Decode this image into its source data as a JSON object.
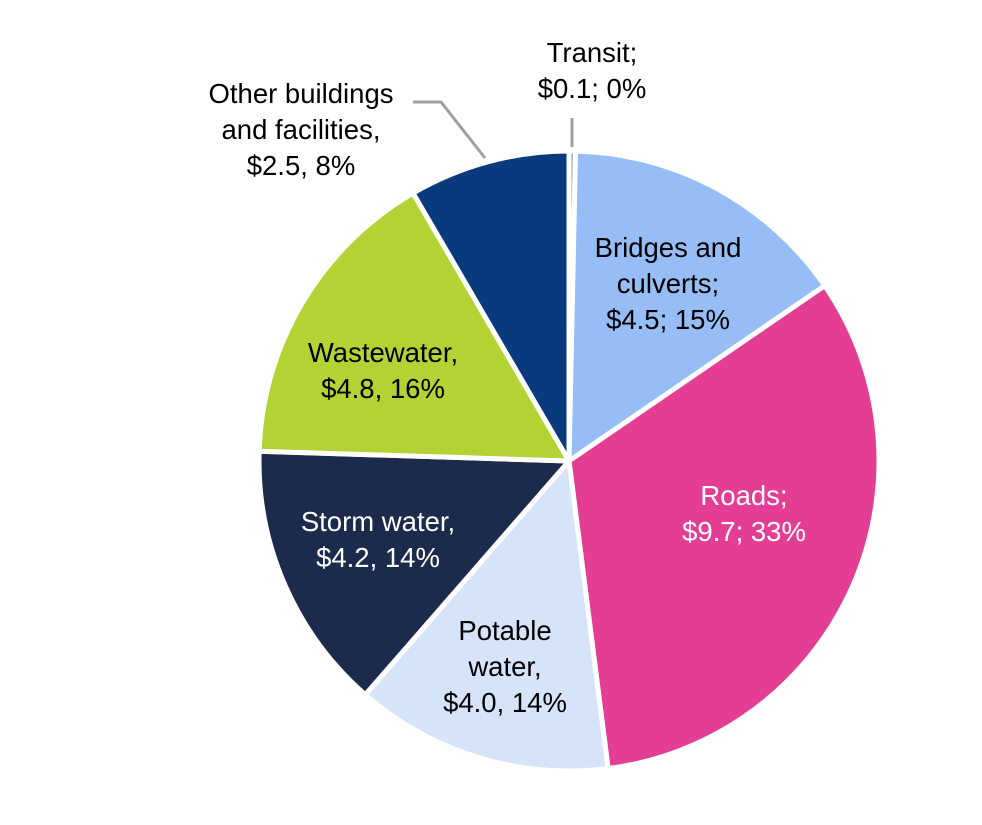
{
  "chart_data": {
    "type": "pie",
    "title": "",
    "start_angle_deg": 0,
    "direction": "clockwise",
    "slices": [
      {
        "name": "Transit",
        "value": 0.1,
        "percent": 0,
        "color": "#a0a0a0",
        "label_lines": [
          "Transit;",
          "$0.1; 0%"
        ],
        "label_color": "#000000",
        "leader_line": true
      },
      {
        "name": "Bridges and culverts",
        "value": 4.5,
        "percent": 15,
        "color": "#96bdf6",
        "label_lines": [
          "Bridges and",
          "culverts;",
          "$4.5; 15%"
        ],
        "label_color": "#000000",
        "leader_line": false
      },
      {
        "name": "Roads",
        "value": 9.7,
        "percent": 33,
        "color": "#e33d94",
        "label_lines": [
          "Roads;",
          "$9.7; 33%"
        ],
        "label_color": "#ffffff",
        "leader_line": false
      },
      {
        "name": "Potable water",
        "value": 4.0,
        "percent": 14,
        "color": "#d5e4f9",
        "label_lines": [
          "Potable",
          "water,",
          "$4.0, 14%"
        ],
        "label_color": "#000000",
        "leader_line": false
      },
      {
        "name": "Storm water",
        "value": 4.2,
        "percent": 14,
        "color": "#1c2b4b",
        "label_lines": [
          "Storm water,",
          "$4.2, 14%"
        ],
        "label_color": "#ffffff",
        "leader_line": false
      },
      {
        "name": "Wastewater",
        "value": 4.8,
        "percent": 16,
        "color": "#b3d234",
        "label_lines": [
          "Wastewater,",
          "$4.8, 16%"
        ],
        "label_color": "#000000",
        "leader_line": false
      },
      {
        "name": "Other buildings and facilities",
        "value": 2.5,
        "percent": 8,
        "color": "#0a3a7e",
        "label_lines": [
          "Other buildings",
          "and facilities,",
          "$2.5, 8%"
        ],
        "label_color": "#000000",
        "leader_line": true
      }
    ],
    "leader_line_color": "#a0a0a0"
  }
}
